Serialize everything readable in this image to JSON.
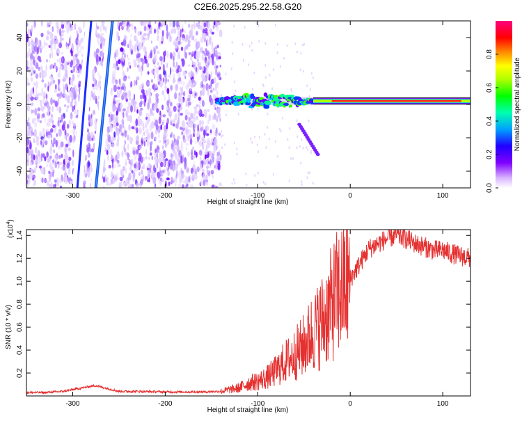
{
  "chart_data": [
    {
      "type": "heatmap",
      "title": "C2E6.2025.295.22.58.G20",
      "xlabel": "Height of straight line (km)",
      "ylabel": "Frequency (Hz)",
      "xlim": [
        -350,
        130
      ],
      "ylim": [
        -50,
        50
      ],
      "x_ticks": [
        -300,
        -200,
        -100,
        0,
        100
      ],
      "y_ticks": [
        -40,
        -20,
        0,
        20,
        40
      ],
      "colorbar": {
        "label": "Normalized spectral amplitude",
        "range": [
          0,
          1
        ],
        "ticks": [
          0.0,
          0.2,
          0.4,
          0.6,
          0.8
        ],
        "colors": [
          "#ffffff",
          "#c080ff",
          "#8000ff",
          "#0000ff",
          "#00c0ff",
          "#00ff80",
          "#40ff00",
          "#ffff00",
          "#ff8000",
          "#ff0000",
          "#ff0080"
        ]
      },
      "features": [
        {
          "name": "diagonal streak 1",
          "from": [
            -295,
            -50
          ],
          "to": [
            -280,
            50
          ],
          "amplitude": 0.15
        },
        {
          "name": "diagonal streak 2",
          "from": [
            -275,
            -50
          ],
          "to": [
            -257,
            50
          ],
          "amplitude": 0.25
        },
        {
          "name": "broadband noise region",
          "x_range": [
            -350,
            -140
          ],
          "amplitude": 0.05
        },
        {
          "name": "tone band",
          "x_range": [
            -145,
            130
          ],
          "frequency_hz": 2,
          "amplitude": 0.9
        },
        {
          "name": "sidelobe",
          "from": [
            -55,
            -12
          ],
          "to": [
            -35,
            -30
          ],
          "amplitude": 0.1
        }
      ]
    },
    {
      "type": "line",
      "xlabel": "Height of straight line (km)",
      "ylabel": "SNR (10 * v/v)",
      "y_scale_label": "(x10",
      "y_scale_exp": "4",
      "y_scale_suffix": ")",
      "xlim": [
        -350,
        130
      ],
      "ylim": [
        0,
        1.45
      ],
      "x_ticks": [
        -300,
        -200,
        -100,
        0,
        100
      ],
      "y_ticks": [
        0.2,
        0.4,
        0.6,
        0.8,
        1.0,
        1.2,
        1.4
      ],
      "color": "#e53030",
      "series": [
        {
          "name": "SNR",
          "x": [
            -350,
            -330,
            -310,
            -290,
            -280,
            -275,
            -260,
            -250,
            -230,
            -200,
            -180,
            -160,
            -140,
            -120,
            -110,
            -100,
            -90,
            -80,
            -70,
            -60,
            -50,
            -40,
            -35,
            -30,
            -25,
            -20,
            -15,
            -10,
            -5,
            0,
            10,
            20,
            30,
            40,
            50,
            60,
            70,
            80,
            90,
            100,
            110,
            120,
            130
          ],
          "y": [
            0.03,
            0.03,
            0.04,
            0.07,
            0.085,
            0.09,
            0.06,
            0.04,
            0.04,
            0.035,
            0.035,
            0.035,
            0.04,
            0.07,
            0.11,
            0.13,
            0.16,
            0.22,
            0.3,
            0.36,
            0.44,
            0.56,
            0.6,
            0.66,
            0.72,
            0.8,
            0.88,
            0.92,
            0.98,
            1.02,
            1.15,
            1.28,
            1.33,
            1.37,
            1.4,
            1.37,
            1.33,
            1.3,
            1.27,
            1.27,
            1.24,
            1.22,
            1.2
          ]
        }
      ]
    }
  ]
}
